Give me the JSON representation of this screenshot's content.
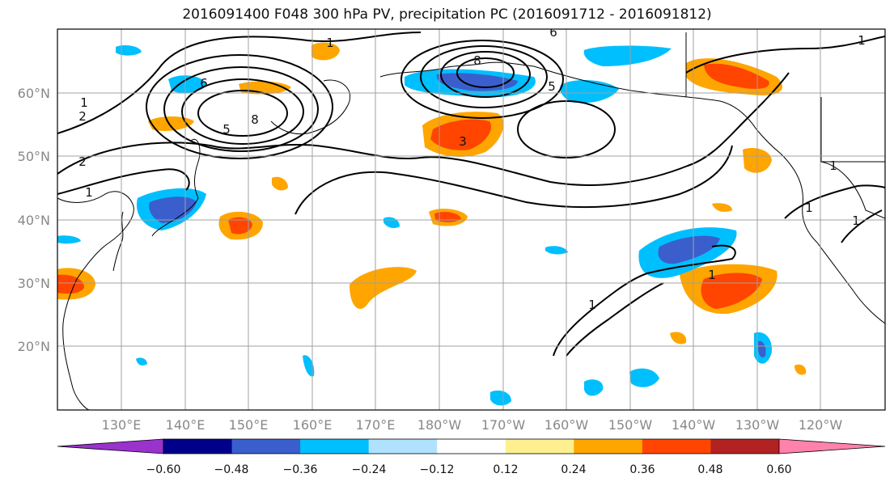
{
  "title": "2016091400 F048 300 hPa PV, precipitation PC (2016091712 - 2016091812)",
  "lat_labels": [
    "60°N",
    "50°N",
    "40°N",
    "30°N",
    "20°N"
  ],
  "lon_labels": [
    "130°E",
    "140°E",
    "150°E",
    "160°E",
    "170°E",
    "180°W",
    "170°W",
    "160°W",
    "150°W",
    "140°W",
    "130°W",
    "120°W"
  ],
  "contour_labels": [
    "1",
    "2",
    "2",
    "1",
    "1",
    "6",
    "5",
    "8",
    "8",
    "5",
    "3",
    "6",
    "1",
    "1",
    "1",
    "1",
    "1",
    "1"
  ],
  "colorbar": {
    "colors": [
      "#9a32cd",
      "#00008b",
      "#3a5fcd",
      "#00bfff",
      "#b0e2ff",
      "#ffffff",
      "#fff08f",
      "#ffa500",
      "#ff4500",
      "#b22222",
      "#ff82ab"
    ],
    "ticks": [
      "−0.60",
      "−0.48",
      "−0.36",
      "−0.24",
      "−0.12",
      "0.12",
      "0.24",
      "0.36",
      "0.48",
      "0.60"
    ]
  }
}
